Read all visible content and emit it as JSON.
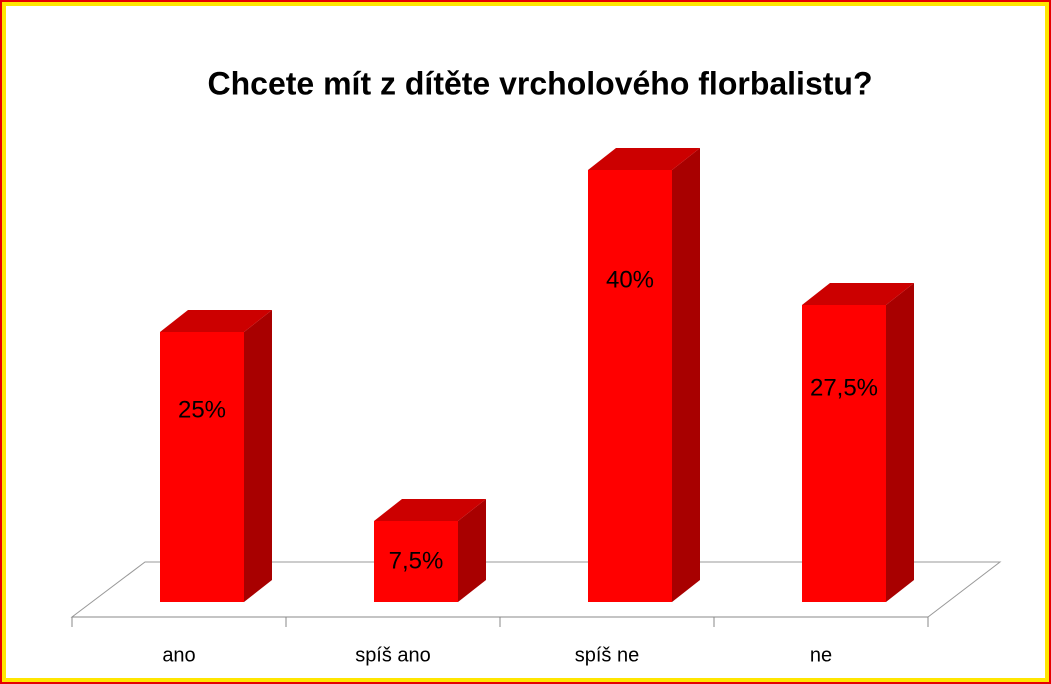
{
  "chart_data": {
    "type": "bar3d",
    "title": "Chcete mít z dítěte vrcholového florbalistu?",
    "categories": [
      "ano",
      "spíš ano",
      "spíš ne",
      "ne"
    ],
    "values": [
      25,
      7.5,
      40,
      27.5
    ],
    "value_labels": [
      "25%",
      "7,5%",
      "40%",
      "27,5%"
    ],
    "color": "#ff0000"
  }
}
